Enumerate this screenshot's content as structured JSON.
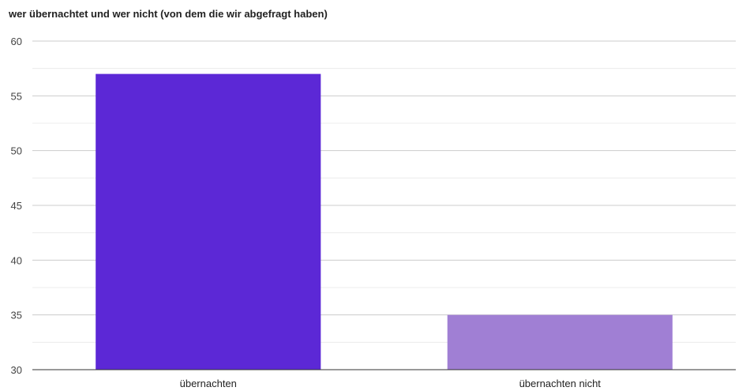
{
  "chart_data": {
    "type": "bar",
    "title": "wer übernachtet und wer nicht (von dem die wir abgefragt haben)",
    "xlabel": "",
    "ylabel": "",
    "categories": [
      "übernachten",
      "übernachten nicht"
    ],
    "values": [
      57,
      35
    ],
    "bar_colors": [
      "#5c28d6",
      "#a07fd4"
    ],
    "ylim": [
      30,
      60
    ],
    "yticks": [
      30,
      35,
      40,
      45,
      50,
      55,
      60
    ],
    "minor_gridlines": true,
    "legend": "none"
  }
}
